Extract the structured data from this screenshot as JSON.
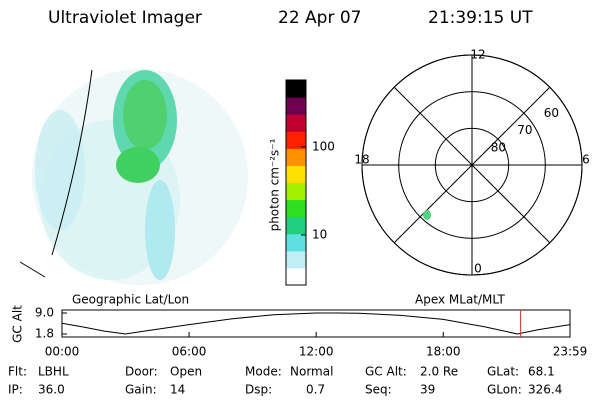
{
  "header": {
    "title": "Ultraviolet Imager",
    "date": "22 Apr 07",
    "time": "21:39:15 UT"
  },
  "colorbar": {
    "label": "photon cm⁻²s⁻¹",
    "scale": "log",
    "ylim": [
      2.7,
      575
    ],
    "yticks": [
      10,
      100
    ],
    "colors": [
      "#ffffff",
      "#bfeff2",
      "#5fe0e0",
      "#20d080",
      "#30e020",
      "#a0f000",
      "#ffe000",
      "#ff9000",
      "#ff2000",
      "#c00030",
      "#700050",
      "#000000"
    ]
  },
  "polar": {
    "lat_rings": [
      80,
      70,
      60
    ],
    "mlt_labels": [
      12,
      18,
      6,
      0
    ],
    "colatitude_span": 30
  },
  "orbit": {
    "type": "line",
    "y_label": "GC Alt",
    "left_label": "Geographic Lat/Lon",
    "right_label": "Apex MLat/MLT",
    "x": [
      0,
      1,
      2,
      3,
      4,
      6,
      8,
      10,
      12,
      13,
      14,
      16,
      18,
      20,
      21.5,
      22.5,
      23.983
    ],
    "values": [
      5.5,
      4.2,
      2.8,
      1.8,
      2.9,
      5.0,
      7.0,
      8.4,
      9.0,
      9.0,
      8.9,
      8.2,
      6.8,
      4.2,
      1.8,
      3.3,
      5.0
    ],
    "color": "#000000",
    "marker_x": 21.65,
    "marker_color": "#e03030",
    "xlim": [
      0,
      23.983
    ],
    "xticks": [
      {
        "value": 0,
        "label": "00:00"
      },
      {
        "value": 6,
        "label": "06:00"
      },
      {
        "value": 12,
        "label": "12:00"
      },
      {
        "value": 18,
        "label": "18:00"
      },
      {
        "value": 23.983,
        "label": "23:59"
      }
    ],
    "ylim": [
      1.8,
      9.0
    ],
    "yticks": [
      {
        "value": 9.0,
        "label": "9.0"
      },
      {
        "value": 1.8,
        "label": "1.8"
      }
    ]
  },
  "info": [
    [
      {
        "label": "Flt:",
        "value": "LBHL"
      },
      {
        "label": "Door:",
        "value": "Open"
      },
      {
        "label": "Mode:",
        "value": "Normal"
      },
      {
        "label": "GC Alt:",
        "value": "2.0 Re"
      },
      {
        "label": "GLat:",
        "value": "68.1"
      }
    ],
    [
      {
        "label": "IP:",
        "value": "36.0"
      },
      {
        "label": "Gain:",
        "value": "14"
      },
      {
        "label": "Dsp:",
        "value": "0.7"
      },
      {
        "label": "Seq:",
        "value": "39"
      },
      {
        "label": "GLon:",
        "value": "326.4"
      }
    ]
  ]
}
